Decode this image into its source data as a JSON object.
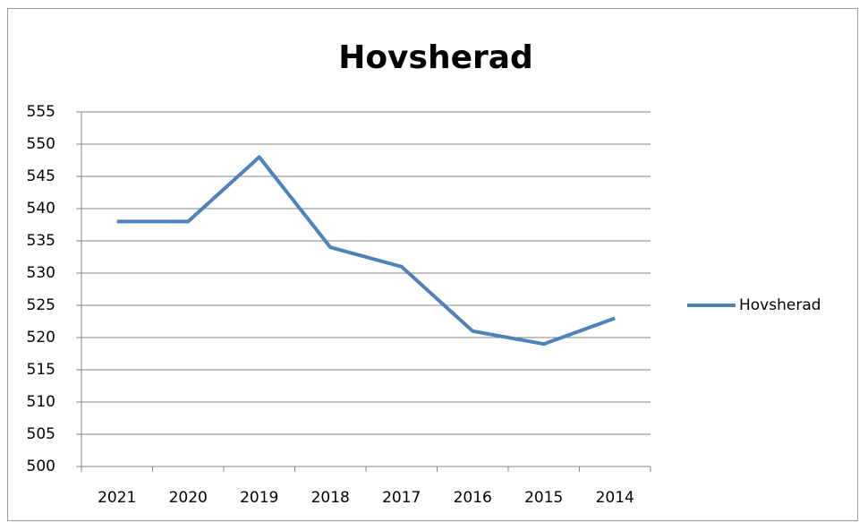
{
  "chart_data": {
    "type": "line",
    "title": "Hovsherad",
    "categories": [
      "2021",
      "2020",
      "2019",
      "2018",
      "2017",
      "2016",
      "2015",
      "2014"
    ],
    "series": [
      {
        "name": "Hovsherad",
        "color": "#4f81bd",
        "values": [
          538,
          538,
          548,
          534,
          531,
          521,
          519,
          523
        ]
      }
    ],
    "ylim": [
      500,
      555
    ],
    "yticks": [
      500,
      505,
      510,
      515,
      520,
      525,
      530,
      535,
      540,
      545,
      550,
      555
    ],
    "grid": true,
    "legend": "right"
  }
}
